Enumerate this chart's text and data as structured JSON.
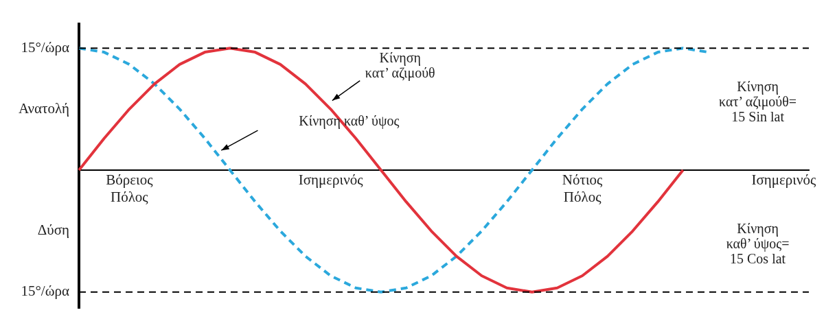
{
  "chart_data": {
    "type": "line",
    "categories": [
      null,
      null,
      "Βόρειος\nΠόλος",
      null,
      null,
      null,
      null,
      null,
      null,
      null,
      "Ισημερινός",
      null,
      null,
      null,
      null,
      null,
      null,
      null,
      null,
      null,
      "Νότιος\nΠόλος",
      null,
      null,
      null,
      null,
      null,
      null,
      null,
      "Ισημερινός",
      null
    ],
    "series": [
      {
        "color": "#e2333c",
        "line_style": "solid",
        "values": [
          0,
          3.9,
          7.5,
          10.6,
          13,
          14.5,
          15,
          14.5,
          13,
          10.6,
          7.5,
          3.9,
          0,
          -3.9,
          -7.5,
          -10.6,
          -13,
          -14.5,
          -15,
          -14.5,
          -13,
          -10.6,
          -7.5,
          -3.9,
          0,
          null,
          null,
          null,
          null,
          null
        ]
      },
      {
        "color": "#2ba8dc",
        "line_style": "dashed",
        "values": [
          15,
          14.5,
          13,
          10.6,
          7.5,
          3.9,
          0,
          -3.9,
          -7.5,
          -10.6,
          -13,
          -14.5,
          -15,
          -14.5,
          -13,
          -10.6,
          -7.5,
          -3.9,
          0,
          3.9,
          7.5,
          10.6,
          13,
          14.5,
          15,
          14.5,
          null,
          null,
          null,
          null
        ]
      }
    ],
    "ylim": [
      -17,
      18
    ],
    "yticks": [
      {
        "value": 15,
        "label": "15°/ώρα"
      },
      {
        "value": 7.5,
        "label": "Ανατολή"
      },
      {
        "value": -7.5,
        "label": "Δύση"
      },
      {
        "value": -15,
        "label": "15°/ώρα"
      }
    ],
    "ref_lines": [
      {
        "axis": "y",
        "value": 15,
        "color": "#000000",
        "line_style": "dashed"
      },
      {
        "axis": "y",
        "value": -15,
        "color": "#000000",
        "line_style": "dashed"
      }
    ],
    "annotations": [
      "Κίνηση\nκατ’ αζιμούθ",
      "Κίνηση καθ’ ύψος",
      "Κίνηση\nκατ’ αζιμούθ=\n15 Sin lat",
      "Κίνηση\nκαθ’ ύψος=\n15 Cos lat"
    ],
    "grid": false,
    "legend": false
  }
}
